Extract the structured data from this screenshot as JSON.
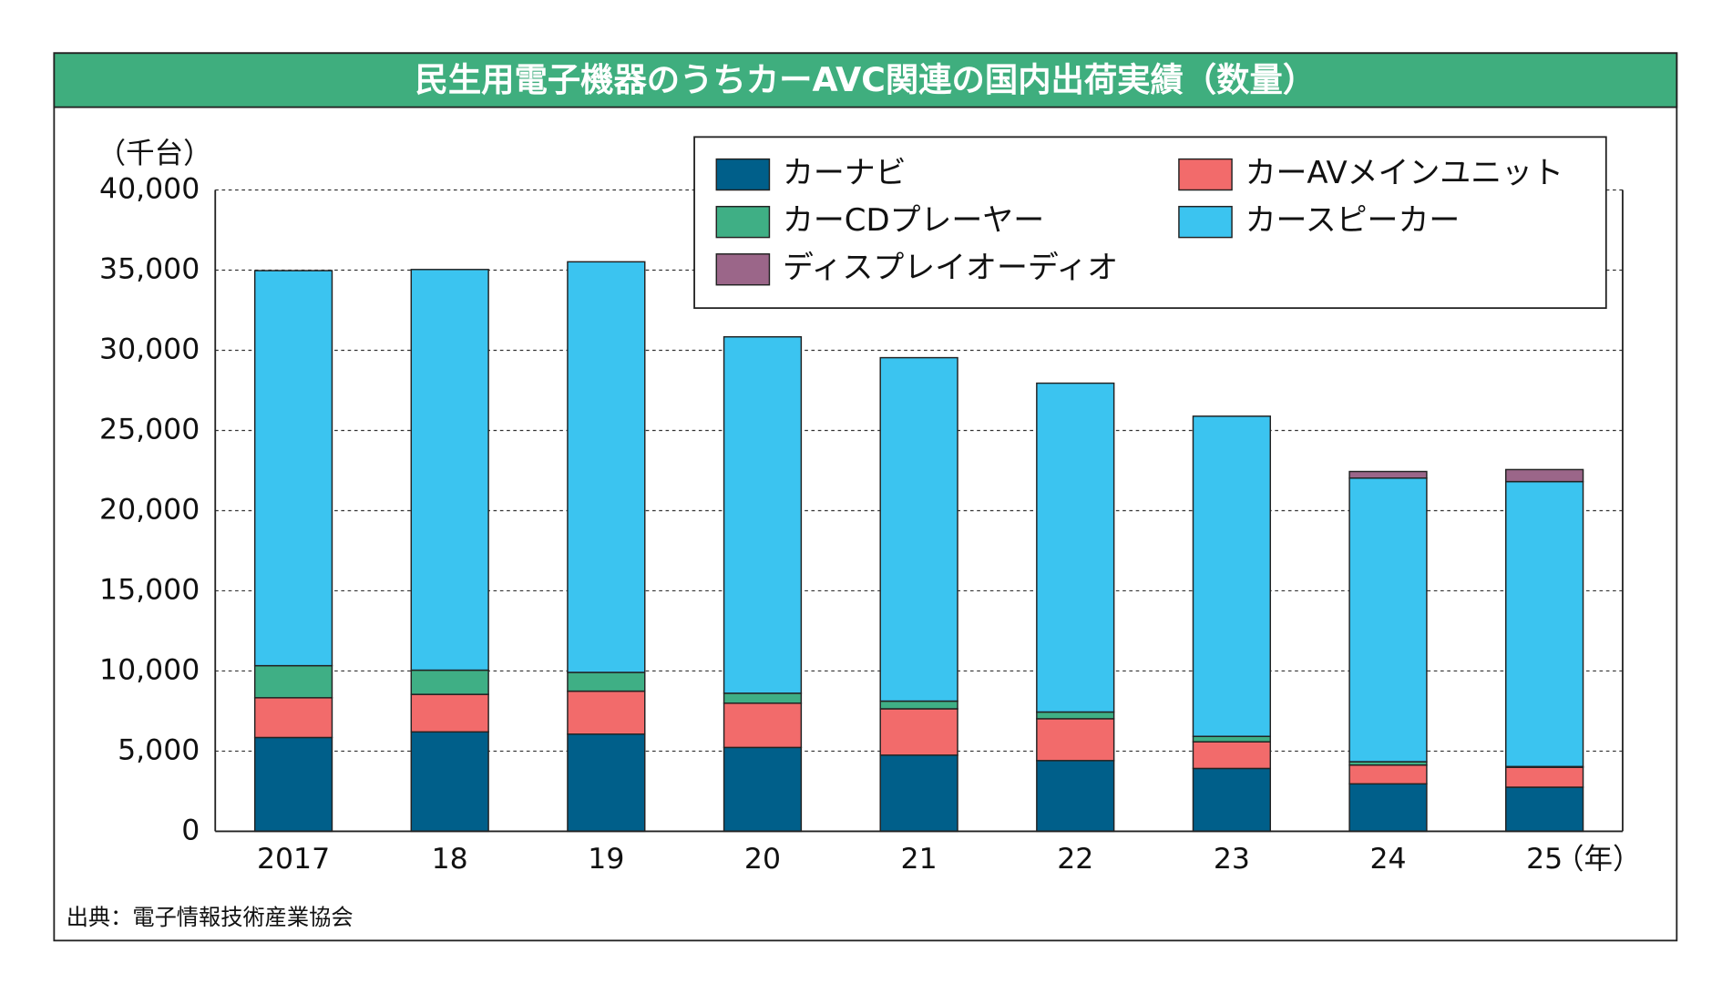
{
  "chart_data": {
    "type": "stacked-bar",
    "title": "民生用電子機器のうちカーAVC関連の国内出荷実績（数量）",
    "y_unit": "（千台）",
    "x_unit": "（年）",
    "source": "出典：電子情報技術産業協会",
    "categories": [
      "2017",
      "18",
      "19",
      "20",
      "21",
      "22",
      "23",
      "24",
      "25"
    ],
    "series": [
      {
        "name": "カーナビ",
        "color": "#005f8a",
        "values": [
          5850,
          6200,
          6060,
          5230,
          4750,
          4410,
          3920,
          2960,
          2750
        ]
      },
      {
        "name": "カーAVメインユニット",
        "color": "#f26b6b",
        "values": [
          2480,
          2340,
          2680,
          2760,
          2890,
          2610,
          1660,
          1170,
          1240
        ]
      },
      {
        "name": "カーCDプレーヤー",
        "color": "#3faf85",
        "values": [
          2000,
          1510,
          1170,
          620,
          480,
          420,
          340,
          210,
          50
        ]
      },
      {
        "name": "カースピーカー",
        "color": "#3bc4f0",
        "values": [
          24640,
          24990,
          25610,
          22230,
          21420,
          20510,
          19970,
          17690,
          17770
        ]
      },
      {
        "name": "ディスプレイオーディオ",
        "color": "#9b6689",
        "values": [
          0,
          0,
          0,
          0,
          0,
          0,
          0,
          410,
          750
        ]
      }
    ],
    "ylim": [
      0,
      40000
    ],
    "yticks": [
      0,
      {
        "value": 5000,
        "label": "5,000"
      },
      {
        "value": 10000,
        "label": "10,000"
      },
      {
        "value": 15000,
        "label": "15,000"
      },
      {
        "value": 20000,
        "label": "20,000"
      },
      {
        "value": 25000,
        "label": "25,000"
      },
      {
        "value": 30000,
        "label": "30,000"
      },
      {
        "value": 35000,
        "label": "35,000"
      },
      {
        "value": 40000,
        "label": "40,000"
      }
    ],
    "grid": true,
    "title_color": "#3fae7e"
  }
}
